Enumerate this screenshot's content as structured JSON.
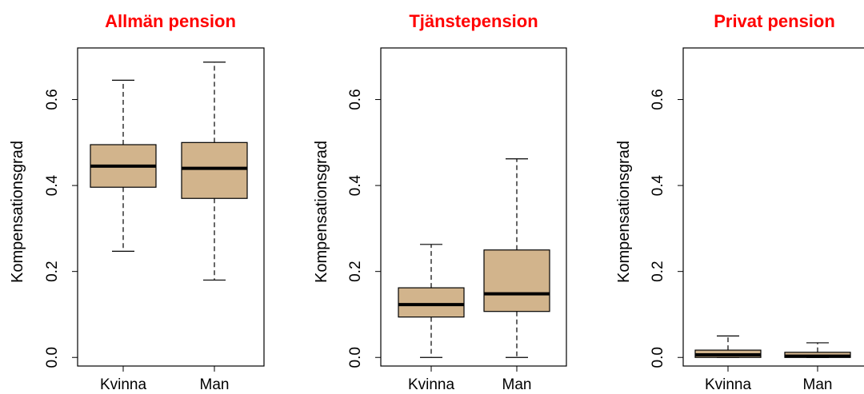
{
  "colors": {
    "title": "#ff0000",
    "box_fill": "#d2b48c",
    "stroke": "#000000",
    "background": "#ffffff"
  },
  "chart_data": [
    {
      "type": "box",
      "title": "Allmän pension",
      "xlabel": "",
      "ylabel": "Kompensationsgrad",
      "ylim": [
        -0.02,
        0.72
      ],
      "yticks": [
        0.0,
        0.2,
        0.4,
        0.6
      ],
      "ytick_labels": [
        "0.0",
        "0.2",
        "0.4",
        "0.6"
      ],
      "categories": [
        "Kvinna",
        "Man"
      ],
      "boxes": [
        {
          "category": "Kvinna",
          "whisker_low": 0.247,
          "q1": 0.396,
          "median": 0.445,
          "q3": 0.495,
          "whisker_high": 0.645
        },
        {
          "category": "Man",
          "whisker_low": 0.18,
          "q1": 0.37,
          "median": 0.44,
          "q3": 0.5,
          "whisker_high": 0.687
        }
      ]
    },
    {
      "type": "box",
      "title": "Tjänstepension",
      "xlabel": "",
      "ylabel": "Kompensationsgrad",
      "ylim": [
        -0.02,
        0.72
      ],
      "yticks": [
        0.0,
        0.2,
        0.4,
        0.6
      ],
      "ytick_labels": [
        "0.0",
        "0.2",
        "0.4",
        "0.6"
      ],
      "categories": [
        "Kvinna",
        "Man"
      ],
      "boxes": [
        {
          "category": "Kvinna",
          "whisker_low": 0.0,
          "q1": 0.094,
          "median": 0.123,
          "q3": 0.162,
          "whisker_high": 0.263
        },
        {
          "category": "Man",
          "whisker_low": 0.0,
          "q1": 0.107,
          "median": 0.148,
          "q3": 0.25,
          "whisker_high": 0.462
        }
      ]
    },
    {
      "type": "box",
      "title": "Privat pension",
      "xlabel": "",
      "ylabel": "Kompensationsgrad",
      "ylim": [
        -0.02,
        0.72
      ],
      "yticks": [
        0.0,
        0.2,
        0.4,
        0.6
      ],
      "ytick_labels": [
        "0.0",
        "0.2",
        "0.4",
        "0.6"
      ],
      "categories": [
        "Kvinna",
        "Man"
      ],
      "boxes": [
        {
          "category": "Kvinna",
          "whisker_low": 0.0,
          "q1": 0.0,
          "median": 0.006,
          "q3": 0.017,
          "whisker_high": 0.05
        },
        {
          "category": "Man",
          "whisker_low": 0.0,
          "q1": 0.0,
          "median": 0.003,
          "q3": 0.012,
          "whisker_high": 0.034
        }
      ]
    }
  ]
}
